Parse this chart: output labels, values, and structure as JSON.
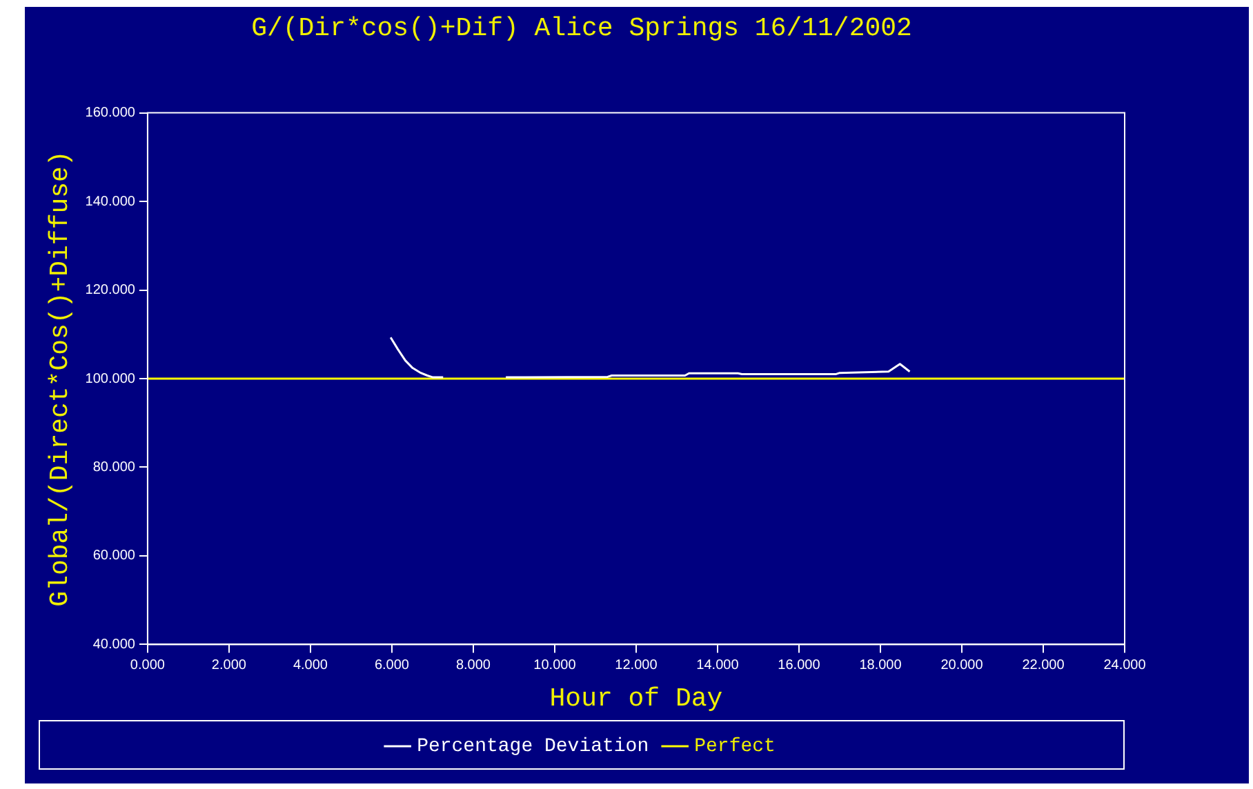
{
  "chart_data": {
    "type": "line",
    "title": "G/(Dir*cos()+Dif) Alice Springs 16/11/2002",
    "xlabel": "Hour of Day",
    "ylabel": "Global/(Direct*Cos()+Diffuse)",
    "xlim": [
      0,
      24
    ],
    "xticks": [
      {
        "value": 0,
        "label": "0.000"
      },
      {
        "value": 2,
        "label": "2.000"
      },
      {
        "value": 4,
        "label": "4.000"
      },
      {
        "value": 6,
        "label": "6.000"
      },
      {
        "value": 8,
        "label": "8.000"
      },
      {
        "value": 10,
        "label": "10.000"
      },
      {
        "value": 12,
        "label": "12.000"
      },
      {
        "value": 14,
        "label": "14.000"
      },
      {
        "value": 16,
        "label": "16.000"
      },
      {
        "value": 18,
        "label": "18.000"
      },
      {
        "value": 20,
        "label": "20.000"
      },
      {
        "value": 22,
        "label": "22.000"
      },
      {
        "value": 24,
        "label": "24.000"
      }
    ],
    "ylim": [
      40,
      160
    ],
    "yticks": [
      {
        "value": 40,
        "label": "40.000"
      },
      {
        "value": 60,
        "label": "60.000"
      },
      {
        "value": 80,
        "label": "80.000"
      },
      {
        "value": 100,
        "label": "100.000"
      },
      {
        "value": 120,
        "label": "120.000"
      },
      {
        "value": 140,
        "label": "140.000"
      },
      {
        "value": 160,
        "label": "160.000"
      }
    ],
    "grid": false,
    "legend": "bottom",
    "marker": "none",
    "line_style": "solid",
    "series": [
      {
        "name": "Percentage Deviation",
        "color": "#ffffff",
        "x": [
          5.97,
          6.15,
          6.33,
          6.51,
          6.69,
          6.87,
          7.01,
          7.26,
          8.0,
          8.8,
          11.3,
          11.4,
          13.2,
          13.3,
          14.5,
          14.6,
          16.9,
          17.0,
          18.2,
          18.48,
          18.72
        ],
        "values": [
          109.3,
          106.6,
          104.1,
          102.4,
          101.4,
          100.7,
          100.3,
          100.3,
          null,
          100.3,
          100.4,
          100.7,
          100.7,
          101.2,
          101.2,
          101.0,
          101.0,
          101.3,
          101.6,
          103.3,
          101.6
        ]
      },
      {
        "name": "Perfect",
        "color": "#ffff00",
        "x": [
          0,
          24
        ],
        "values": [
          100,
          100
        ]
      }
    ]
  }
}
